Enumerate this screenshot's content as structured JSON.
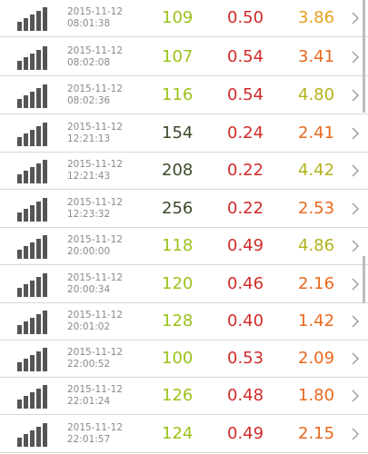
{
  "colors": {
    "green": "#9bc21b",
    "dark": "#3a4a2a",
    "red": "#d12b2b",
    "orange_yellow": "#e6a020",
    "orange": "#e8681e",
    "olive": "#b3b21c"
  },
  "rows": [
    {
      "date": "2015-11-12",
      "time": "08:01:38",
      "v1": "109",
      "v2": "0.50",
      "v3": "3.86",
      "c1": "green",
      "c3": "orange_yellow"
    },
    {
      "date": "2015-11-12",
      "time": "08:02:08",
      "v1": "107",
      "v2": "0.54",
      "v3": "3.41",
      "c1": "green",
      "c3": "orange"
    },
    {
      "date": "2015-11-12",
      "time": "08:02:36",
      "v1": "116",
      "v2": "0.54",
      "v3": "4.80",
      "c1": "green",
      "c3": "olive"
    },
    {
      "date": "2015-11-12",
      "time": "12:21:13",
      "v1": "154",
      "v2": "0.24",
      "v3": "2.41",
      "c1": "dark",
      "c3": "orange"
    },
    {
      "date": "2015-11-12",
      "time": "12:21:43",
      "v1": "208",
      "v2": "0.22",
      "v3": "4.42",
      "c1": "dark",
      "c3": "olive"
    },
    {
      "date": "2015-11-12",
      "time": "12:23:32",
      "v1": "256",
      "v2": "0.22",
      "v3": "2.53",
      "c1": "dark",
      "c3": "orange"
    },
    {
      "date": "2015-11-12",
      "time": "20:00:00",
      "v1": "118",
      "v2": "0.49",
      "v3": "4.86",
      "c1": "green",
      "c3": "olive"
    },
    {
      "date": "2015-11-12",
      "time": "20:00:34",
      "v1": "120",
      "v2": "0.46",
      "v3": "2.16",
      "c1": "green",
      "c3": "orange"
    },
    {
      "date": "2015-11-12",
      "time": "20:01:02",
      "v1": "128",
      "v2": "0.40",
      "v3": "1.42",
      "c1": "green",
      "c3": "orange"
    },
    {
      "date": "2015-11-12",
      "time": "22:00:52",
      "v1": "100",
      "v2": "0.53",
      "v3": "2.09",
      "c1": "green",
      "c3": "orange"
    },
    {
      "date": "2015-11-12",
      "time": "22:01:24",
      "v1": "126",
      "v2": "0.48",
      "v3": "1.80",
      "c1": "green",
      "c3": "orange"
    },
    {
      "date": "2015-11-12",
      "time": "22:01:57",
      "v1": "124",
      "v2": "0.49",
      "v3": "2.15",
      "c1": "green",
      "c3": "orange"
    }
  ],
  "icons": {
    "signal": "signal-strength-icon",
    "chevron": "chevron-right-icon"
  }
}
